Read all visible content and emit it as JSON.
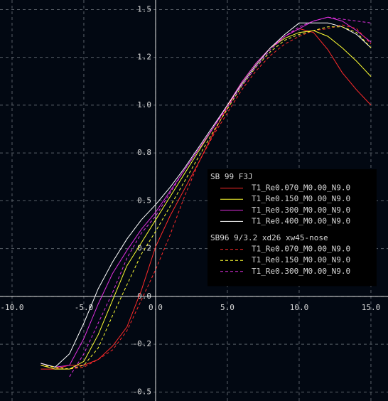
{
  "chart_data": {
    "type": "line",
    "x": [
      -8,
      -7,
      -6,
      -5,
      -4,
      -3,
      -2,
      -1,
      0,
      1,
      2,
      3,
      4,
      5,
      6,
      7,
      8,
      9,
      10,
      11,
      12,
      13,
      14,
      15
    ],
    "series": [
      {
        "name": "T1_Re0.070_M0.00_N9.0",
        "color": "#ff2a2a",
        "dashed": false,
        "values": [
          -0.38,
          -0.38,
          -0.36,
          -0.36,
          -0.33,
          -0.26,
          -0.16,
          0.03,
          0.26,
          0.42,
          0.56,
          0.7,
          0.85,
          0.99,
          1.12,
          1.22,
          1.3,
          1.36,
          1.4,
          1.38,
          1.29,
          1.17,
          1.08,
          1.0
        ]
      },
      {
        "name": "T1_Re0.150_M0.00_N9.0",
        "color": "#ffff33",
        "dashed": false,
        "values": [
          -0.36,
          -0.38,
          -0.38,
          -0.34,
          -0.2,
          -0.02,
          0.16,
          0.28,
          0.4,
          0.52,
          0.64,
          0.76,
          0.88,
          1.0,
          1.12,
          1.22,
          1.3,
          1.35,
          1.38,
          1.39,
          1.36,
          1.3,
          1.23,
          1.15
        ]
      },
      {
        "name": "T1_Re0.300_M0.00_N9.0",
        "color": "#e030e0",
        "dashed": false,
        "values": [
          -0.35,
          -0.37,
          -0.36,
          -0.22,
          -0.04,
          0.12,
          0.24,
          0.35,
          0.44,
          0.55,
          0.66,
          0.77,
          0.88,
          1.0,
          1.12,
          1.22,
          1.3,
          1.36,
          1.4,
          1.44,
          1.46,
          1.44,
          1.39,
          1.33
        ]
      },
      {
        "name": "T1_Re0.400_M0.00_N9.0",
        "color": "#ffffff",
        "dashed": false,
        "values": [
          -0.35,
          -0.37,
          -0.3,
          -0.14,
          0.04,
          0.18,
          0.3,
          0.4,
          0.48,
          0.57,
          0.67,
          0.78,
          0.89,
          1.0,
          1.11,
          1.21,
          1.3,
          1.37,
          1.43,
          1.43,
          1.43,
          1.41,
          1.37,
          1.3
        ]
      },
      {
        "name": "T1_Re0.070_M0.00_N9.0",
        "color": "#ff2a2a",
        "dashed": true,
        "values": [
          -0.36,
          -0.37,
          -0.38,
          -0.37,
          -0.33,
          -0.28,
          -0.18,
          -0.02,
          0.14,
          0.32,
          0.52,
          0.7,
          0.84,
          0.96,
          1.08,
          1.18,
          1.26,
          1.32,
          1.36,
          1.39,
          1.4,
          1.42,
          1.4,
          1.32
        ]
      },
      {
        "name": "T1_Re0.150_M0.00_N9.0",
        "color": "#ffff33",
        "dashed": true,
        "values": [
          -0.36,
          -0.37,
          -0.38,
          -0.36,
          -0.27,
          -0.1,
          0.06,
          0.22,
          0.34,
          0.47,
          0.6,
          0.73,
          0.86,
          0.98,
          1.1,
          1.2,
          1.28,
          1.34,
          1.37,
          1.39,
          1.41,
          1.41,
          1.38,
          1.3
        ]
      },
      {
        "name": "T1_Re0.300_M0.00_N9.0",
        "color": "#e030e0",
        "dashed": true,
        "values": [
          null,
          null,
          -0.42,
          -0.3,
          -0.14,
          0.02,
          0.2,
          0.33,
          0.42,
          0.54,
          0.66,
          0.77,
          0.88,
          0.99,
          1.1,
          1.2,
          1.29,
          1.36,
          1.41,
          1.44,
          1.46,
          1.45,
          1.44,
          1.43
        ]
      }
    ],
    "legend_groups": [
      {
        "title": "SB 99 F3J",
        "series": [
          0,
          1,
          2,
          3
        ]
      },
      {
        "title": "SB96 9/3.2 xd26 xw45-nose",
        "series": [
          4,
          5,
          6
        ]
      }
    ],
    "xlim": [
      -10.84,
      16.19
    ],
    "ylim": [
      -0.547,
      1.55
    ],
    "xticks": [
      {
        "value": -10,
        "label": "-10.0"
      },
      {
        "value": -5,
        "label": "-5.0"
      },
      {
        "value": 0,
        "label": "0.0"
      },
      {
        "value": 5,
        "label": "5.0"
      },
      {
        "value": 10,
        "label": "10.0"
      },
      {
        "value": 15,
        "label": "15.0"
      }
    ],
    "yticks": [
      {
        "value": -0.5,
        "label": "-0.5"
      },
      {
        "value": -0.25,
        "label": "-0.2"
      },
      {
        "value": 0,
        "label": "0.0"
      },
      {
        "value": 0.25,
        "label": "0.2"
      },
      {
        "value": 0.5,
        "label": "0.5"
      },
      {
        "value": 0.75,
        "label": "0.8"
      },
      {
        "value": 1,
        "label": "1.0"
      },
      {
        "value": 1.25,
        "label": "1.2"
      },
      {
        "value": 1.5,
        "label": "1.5"
      }
    ],
    "grid": true
  }
}
